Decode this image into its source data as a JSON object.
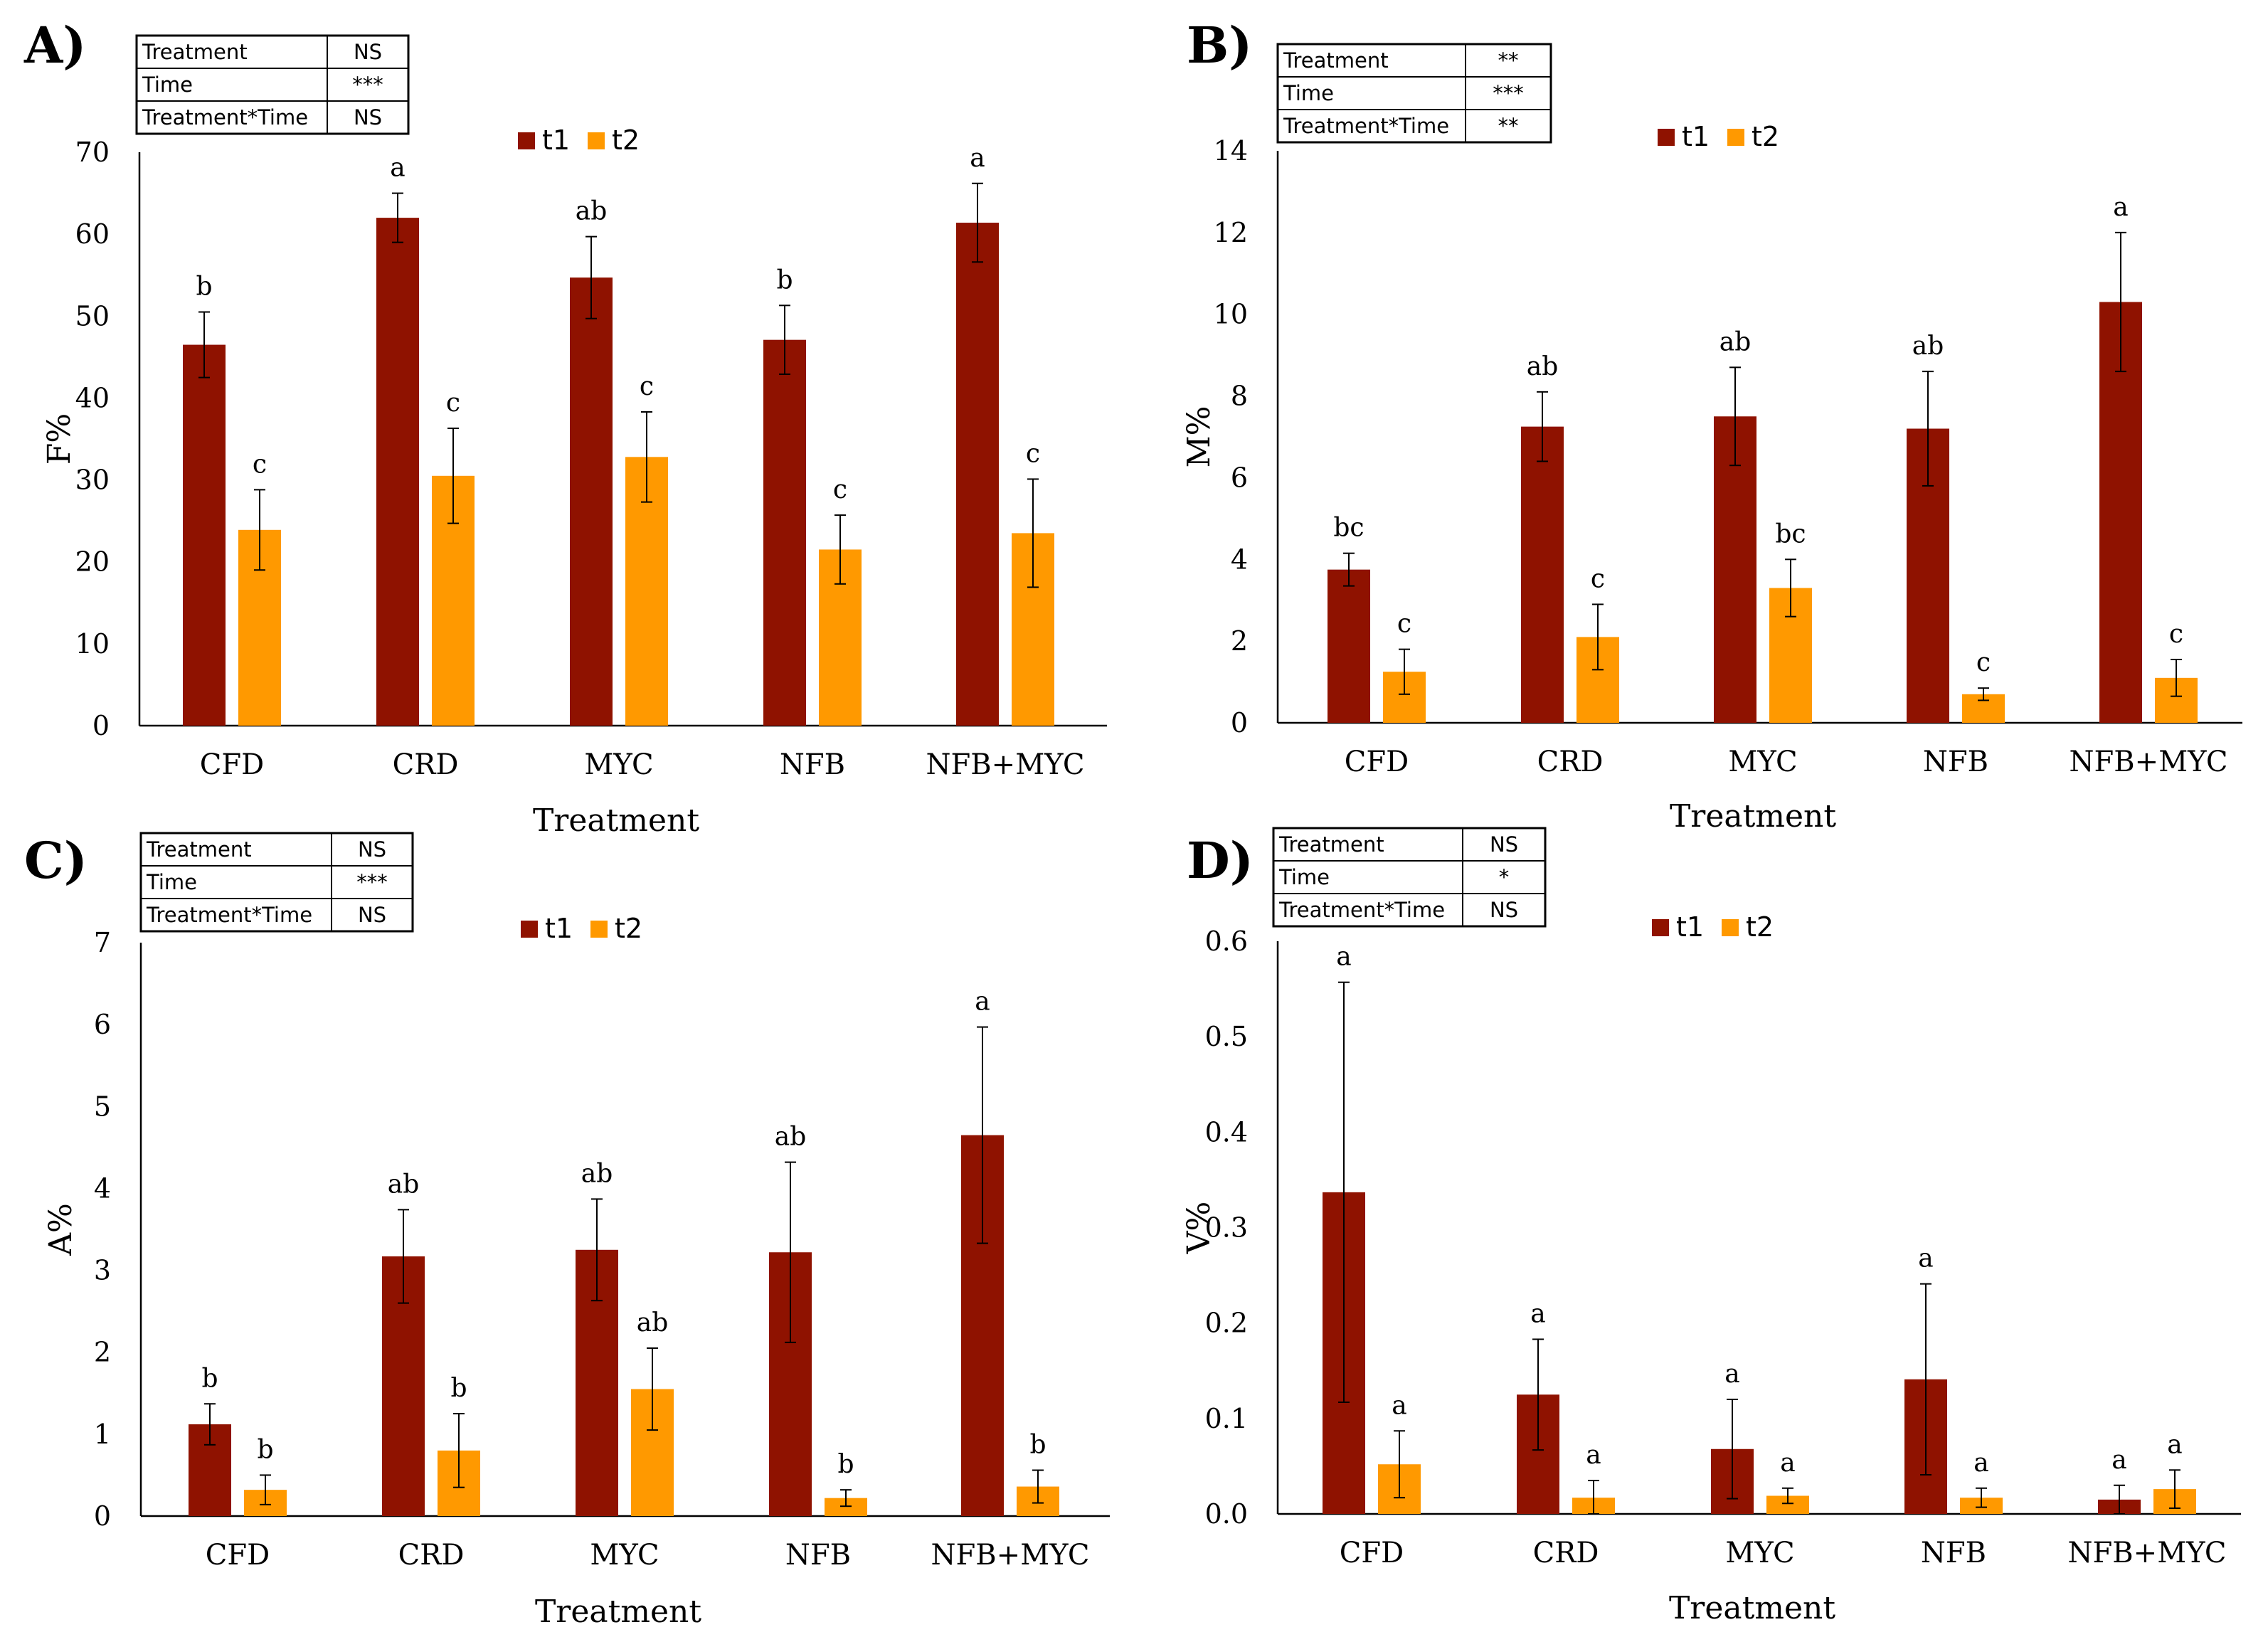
{
  "colors": {
    "t1": "#8f1200",
    "t2": "#ff9900",
    "axis": "#000000",
    "error_bar": "#000000"
  },
  "chart_data": [
    {
      "panel_label": "A)",
      "type": "bar",
      "title": "",
      "xlabel": "Treatment",
      "ylabel": "F%",
      "ylim": [
        0,
        70
      ],
      "yticks": [
        "0",
        "10",
        "20",
        "30",
        "40",
        "50",
        "60",
        "70"
      ],
      "categories": [
        "CFD",
        "CRD",
        "MYC",
        "NFB",
        "NFB+MYC"
      ],
      "series": [
        {
          "name": "t1",
          "values": [
            46.5,
            62.0,
            54.7,
            47.1,
            61.4
          ],
          "errors": [
            4.0,
            3.0,
            5.0,
            4.2,
            4.8
          ],
          "letters": [
            "b",
            "a",
            "ab",
            "b",
            "a"
          ]
        },
        {
          "name": "t2",
          "values": [
            23.9,
            30.5,
            32.8,
            21.5,
            23.5
          ],
          "errors": [
            4.9,
            5.8,
            5.5,
            4.2,
            6.6
          ],
          "letters": [
            "c",
            "c",
            "c",
            "c",
            "c"
          ]
        }
      ],
      "stats_table": [
        [
          "Treatment",
          "NS"
        ],
        [
          "Time",
          "***"
        ],
        [
          "Treatment*Time",
          "NS"
        ]
      ],
      "legend": [
        "t1",
        "t2"
      ]
    },
    {
      "panel_label": "B)",
      "type": "bar",
      "title": "",
      "xlabel": "Treatment",
      "ylabel": "M%",
      "ylim": [
        0,
        14
      ],
      "yticks": [
        "0",
        "2",
        "4",
        "6",
        "8",
        "10",
        "12",
        "14"
      ],
      "categories": [
        "CFD",
        "CRD",
        "MYC",
        "NFB",
        "NFB+MYC"
      ],
      "series": [
        {
          "name": "t1",
          "values": [
            3.75,
            7.25,
            7.5,
            7.2,
            10.3
          ],
          "errors": [
            0.4,
            0.85,
            1.2,
            1.4,
            1.7
          ],
          "letters": [
            "bc",
            "ab",
            "ab",
            "ab",
            "a"
          ]
        },
        {
          "name": "t2",
          "values": [
            1.25,
            2.1,
            3.3,
            0.7,
            1.1
          ],
          "errors": [
            0.55,
            0.8,
            0.7,
            0.15,
            0.45
          ],
          "letters": [
            "c",
            "c",
            "bc",
            "c",
            "c"
          ]
        }
      ],
      "stats_table": [
        [
          "Treatment",
          "**"
        ],
        [
          "Time",
          "***"
        ],
        [
          "Treatment*Time",
          "**"
        ]
      ],
      "legend": [
        "t1",
        "t2"
      ]
    },
    {
      "panel_label": "C)",
      "type": "bar",
      "title": "",
      "xlabel": "Treatment",
      "ylabel": "A%",
      "ylim": [
        0,
        7
      ],
      "yticks": [
        "0",
        "1",
        "2",
        "3",
        "4",
        "5",
        "6",
        "7"
      ],
      "categories": [
        "CFD",
        "CRD",
        "MYC",
        "NFB",
        "NFB+MYC"
      ],
      "series": [
        {
          "name": "t1",
          "values": [
            1.12,
            3.17,
            3.25,
            3.22,
            4.65
          ],
          "errors": [
            0.25,
            0.57,
            0.62,
            1.1,
            1.32
          ],
          "letters": [
            "b",
            "ab",
            "ab",
            "ab",
            "a"
          ]
        },
        {
          "name": "t2",
          "values": [
            0.32,
            0.8,
            1.55,
            0.22,
            0.36
          ],
          "errors": [
            0.18,
            0.45,
            0.5,
            0.1,
            0.2
          ],
          "letters": [
            "b",
            "b",
            "ab",
            "b",
            "b"
          ]
        }
      ],
      "stats_table": [
        [
          "Treatment",
          "NS"
        ],
        [
          "Time",
          "***"
        ],
        [
          "Treatment*Time",
          "NS"
        ]
      ],
      "legend": [
        "t1",
        "t2"
      ]
    },
    {
      "panel_label": "D)",
      "type": "bar",
      "title": "",
      "xlabel": "Treatment",
      "ylabel": "V%",
      "ylim": [
        0,
        0.6
      ],
      "yticks": [
        "0.0",
        "0.1",
        "0.2",
        "0.3",
        "0.4",
        "0.5",
        "0.6"
      ],
      "categories": [
        "CFD",
        "CRD",
        "MYC",
        "NFB",
        "NFB+MYC"
      ],
      "series": [
        {
          "name": "t1",
          "values": [
            0.337,
            0.125,
            0.068,
            0.141,
            0.015
          ],
          "errors": [
            0.22,
            0.058,
            0.052,
            0.1,
            0.015
          ],
          "letters": [
            "a",
            "a",
            "a",
            "a",
            "a"
          ]
        },
        {
          "name": "t2",
          "values": [
            0.052,
            0.017,
            0.019,
            0.017,
            0.026
          ],
          "errors": [
            0.035,
            0.018,
            0.008,
            0.01,
            0.02
          ],
          "letters": [
            "a",
            "a",
            "a",
            "a",
            "a"
          ]
        }
      ],
      "stats_table": [
        [
          "Treatment",
          "NS"
        ],
        [
          "Time",
          "*"
        ],
        [
          "Treatment*Time",
          "NS"
        ]
      ],
      "legend": [
        "t1",
        "t2"
      ]
    }
  ]
}
